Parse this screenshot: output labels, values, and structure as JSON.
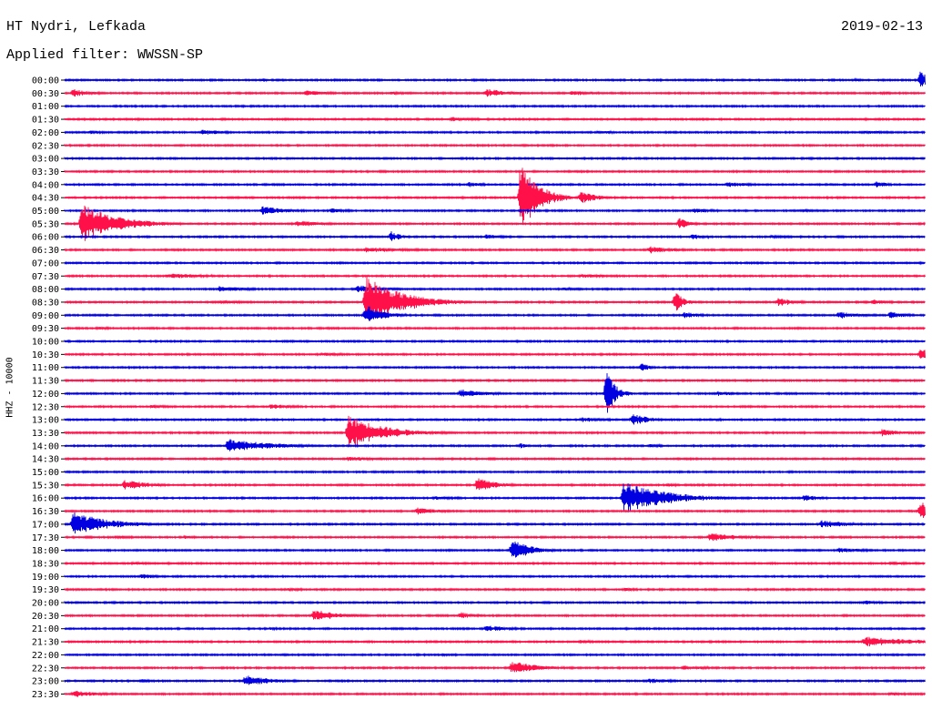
{
  "header": {
    "station": "HT Nydri, Lefkada",
    "date": "2019-02-13",
    "filter": "Applied filter: WWSSN-SP"
  },
  "chart_data": {
    "type": "line",
    "title": "HT Nydri, Lefkada",
    "subtitle": "Applied filter: WWSSN-SP",
    "ylabel": "HHZ - 10000",
    "trace_colors": [
      "#0000e0",
      "#ff1048"
    ],
    "row_labels": [
      "00:00",
      "00:30",
      "01:00",
      "01:30",
      "02:00",
      "02:30",
      "03:00",
      "03:30",
      "04:00",
      "04:30",
      "05:00",
      "05:30",
      "06:00",
      "06:30",
      "07:00",
      "07:30",
      "08:00",
      "08:30",
      "09:00",
      "09:30",
      "10:00",
      "10:30",
      "11:00",
      "11:30",
      "12:00",
      "12:30",
      "13:00",
      "13:30",
      "14:00",
      "14:30",
      "15:00",
      "15:30",
      "16:00",
      "16:30",
      "17:00",
      "17:30",
      "18:00",
      "18:30",
      "19:00",
      "19:30",
      "20:00",
      "20:30",
      "21:00",
      "21:30",
      "22:00",
      "22:30",
      "23:00",
      "23:30"
    ],
    "events": [
      {
        "row": "00:00",
        "t": 0.995,
        "amp": 12,
        "dur": 0.01
      },
      {
        "row": "00:00",
        "t": 0.23,
        "amp": 2,
        "dur": 0.01
      },
      {
        "row": "00:00",
        "t": 0.92,
        "amp": 2,
        "dur": 0.01
      },
      {
        "row": "00:30",
        "t": 0.01,
        "amp": 5,
        "dur": 0.02
      },
      {
        "row": "00:30",
        "t": 0.28,
        "amp": 3,
        "dur": 0.03
      },
      {
        "row": "00:30",
        "t": 0.38,
        "amp": 2,
        "dur": 0.02
      },
      {
        "row": "00:30",
        "t": 0.49,
        "amp": 5,
        "dur": 0.03
      },
      {
        "row": "00:30",
        "t": 0.59,
        "amp": 3,
        "dur": 0.03
      },
      {
        "row": "00:30",
        "t": 0.95,
        "amp": 2,
        "dur": 0.02
      },
      {
        "row": "01:30",
        "t": 0.45,
        "amp": 3,
        "dur": 0.03
      },
      {
        "row": "02:00",
        "t": 0.03,
        "amp": 2,
        "dur": 0.02
      },
      {
        "row": "02:00",
        "t": 0.16,
        "amp": 3,
        "dur": 0.03
      },
      {
        "row": "02:00",
        "t": 0.62,
        "amp": 2,
        "dur": 0.03
      },
      {
        "row": "02:00",
        "t": 0.93,
        "amp": 2,
        "dur": 0.04
      },
      {
        "row": "04:00",
        "t": 0.47,
        "amp": 3,
        "dur": 0.02
      },
      {
        "row": "04:00",
        "t": 0.77,
        "amp": 3,
        "dur": 0.03
      },
      {
        "row": "04:00",
        "t": 0.945,
        "amp": 5,
        "dur": 0.01
      },
      {
        "row": "04:30",
        "t": 0.53,
        "amp": 42,
        "dur": 0.02
      },
      {
        "row": "04:30",
        "t": 0.6,
        "amp": 7,
        "dur": 0.02
      },
      {
        "row": "05:00",
        "t": 0.23,
        "amp": 5,
        "dur": 0.03
      },
      {
        "row": "05:00",
        "t": 0.31,
        "amp": 3,
        "dur": 0.02
      },
      {
        "row": "05:00",
        "t": 0.73,
        "amp": 3,
        "dur": 0.03
      },
      {
        "row": "05:00",
        "t": 0.86,
        "amp": 2,
        "dur": 0.02
      },
      {
        "row": "05:30",
        "t": 0.02,
        "amp": 22,
        "dur": 0.04
      },
      {
        "row": "05:30",
        "t": 0.27,
        "amp": 4,
        "dur": 0.03
      },
      {
        "row": "05:30",
        "t": 0.715,
        "amp": 8,
        "dur": 0.01
      },
      {
        "row": "06:00",
        "t": 0.38,
        "amp": 7,
        "dur": 0.01
      },
      {
        "row": "06:00",
        "t": 0.49,
        "amp": 3,
        "dur": 0.02
      },
      {
        "row": "06:00",
        "t": 0.73,
        "amp": 3,
        "dur": 0.02
      },
      {
        "row": "06:00",
        "t": 0.82,
        "amp": 2,
        "dur": 0.03
      },
      {
        "row": "06:30",
        "t": 0.35,
        "amp": 3,
        "dur": 0.06
      },
      {
        "row": "06:30",
        "t": 0.68,
        "amp": 4,
        "dur": 0.03
      },
      {
        "row": "07:30",
        "t": 0.12,
        "amp": 3,
        "dur": 0.05
      },
      {
        "row": "07:30",
        "t": 0.6,
        "amp": 2,
        "dur": 0.06
      },
      {
        "row": "08:00",
        "t": 0.18,
        "amp": 4,
        "dur": 0.03
      },
      {
        "row": "08:00",
        "t": 0.34,
        "amp": 5,
        "dur": 0.03
      },
      {
        "row": "08:00",
        "t": 0.58,
        "amp": 2,
        "dur": 0.02
      },
      {
        "row": "08:30",
        "t": 0.35,
        "amp": 30,
        "dur": 0.04
      },
      {
        "row": "08:30",
        "t": 0.71,
        "amp": 12,
        "dur": 0.01
      },
      {
        "row": "08:30",
        "t": 0.83,
        "amp": 5,
        "dur": 0.02
      },
      {
        "row": "08:30",
        "t": 0.94,
        "amp": 3,
        "dur": 0.02
      },
      {
        "row": "08:30",
        "t": 0.18,
        "amp": 2,
        "dur": 0.05
      },
      {
        "row": "09:00",
        "t": 0.35,
        "amp": 12,
        "dur": 0.02
      },
      {
        "row": "09:00",
        "t": 0.72,
        "amp": 4,
        "dur": 0.02
      },
      {
        "row": "09:00",
        "t": 0.9,
        "amp": 4,
        "dur": 0.03
      },
      {
        "row": "09:00",
        "t": 0.96,
        "amp": 4,
        "dur": 0.02
      },
      {
        "row": "09:30",
        "t": 0.04,
        "amp": 2,
        "dur": 0.02
      },
      {
        "row": "10:30",
        "t": 0.3,
        "amp": 2,
        "dur": 0.04
      },
      {
        "row": "10:30",
        "t": 0.995,
        "amp": 7,
        "dur": 0.02
      },
      {
        "row": "11:00",
        "t": 0.67,
        "amp": 6,
        "dur": 0.01
      },
      {
        "row": "12:00",
        "t": 0.63,
        "amp": 28,
        "dur": 0.01
      },
      {
        "row": "12:00",
        "t": 0.46,
        "amp": 5,
        "dur": 0.03
      },
      {
        "row": "12:00",
        "t": 0.76,
        "amp": 3,
        "dur": 0.02
      },
      {
        "row": "12:30",
        "t": 0.1,
        "amp": 2,
        "dur": 0.04
      },
      {
        "row": "12:30",
        "t": 0.24,
        "amp": 3,
        "dur": 0.03
      },
      {
        "row": "13:00",
        "t": 0.66,
        "amp": 7,
        "dur": 0.02
      },
      {
        "row": "13:00",
        "t": 0.6,
        "amp": 3,
        "dur": 0.04
      },
      {
        "row": "13:00",
        "t": 0.75,
        "amp": 2,
        "dur": 0.02
      },
      {
        "row": "13:30",
        "t": 0.33,
        "amp": 20,
        "dur": 0.04
      },
      {
        "row": "13:30",
        "t": 0.95,
        "amp": 4,
        "dur": 0.03
      },
      {
        "row": "14:00",
        "t": 0.19,
        "amp": 8,
        "dur": 0.05
      },
      {
        "row": "14:00",
        "t": 0.53,
        "amp": 3,
        "dur": 0.01
      },
      {
        "row": "14:00",
        "t": 0.68,
        "amp": 2,
        "dur": 0.02
      },
      {
        "row": "14:30",
        "t": 0.33,
        "amp": 3,
        "dur": 0.03
      },
      {
        "row": "15:00",
        "t": 0.41,
        "amp": 2,
        "dur": 0.02
      },
      {
        "row": "15:30",
        "t": 0.07,
        "amp": 6,
        "dur": 0.03
      },
      {
        "row": "15:30",
        "t": 0.48,
        "amp": 9,
        "dur": 0.02
      },
      {
        "row": "15:30",
        "t": 0.7,
        "amp": 2,
        "dur": 0.02
      },
      {
        "row": "16:00",
        "t": 0.65,
        "amp": 18,
        "dur": 0.05
      },
      {
        "row": "16:00",
        "t": 0.86,
        "amp": 4,
        "dur": 0.02
      },
      {
        "row": "16:00",
        "t": 0.43,
        "amp": 2,
        "dur": 0.04
      },
      {
        "row": "16:30",
        "t": 0.995,
        "amp": 11,
        "dur": 0.02
      },
      {
        "row": "16:30",
        "t": 0.41,
        "amp": 4,
        "dur": 0.03
      },
      {
        "row": "17:00",
        "t": 0.01,
        "amp": 14,
        "dur": 0.04
      },
      {
        "row": "17:00",
        "t": 0.88,
        "amp": 5,
        "dur": 0.03
      },
      {
        "row": "17:30",
        "t": 0.06,
        "amp": 2,
        "dur": 0.03
      },
      {
        "row": "17:30",
        "t": 0.75,
        "amp": 5,
        "dur": 0.04
      },
      {
        "row": "17:30",
        "t": 0.14,
        "amp": 2,
        "dur": 0.02
      },
      {
        "row": "18:00",
        "t": 0.52,
        "amp": 14,
        "dur": 0.02
      },
      {
        "row": "18:00",
        "t": 0.9,
        "amp": 3,
        "dur": 0.03
      },
      {
        "row": "18:30",
        "t": 0.08,
        "amp": 2,
        "dur": 0.03
      },
      {
        "row": "18:30",
        "t": 0.96,
        "amp": 2,
        "dur": 0.03
      },
      {
        "row": "19:00",
        "t": 0.09,
        "amp": 3,
        "dur": 0.02
      },
      {
        "row": "19:30",
        "t": 0.26,
        "amp": 2,
        "dur": 0.03
      },
      {
        "row": "19:30",
        "t": 0.65,
        "amp": 2,
        "dur": 0.02
      },
      {
        "row": "20:00",
        "t": 0.93,
        "amp": 3,
        "dur": 0.02
      },
      {
        "row": "20:30",
        "t": 0.29,
        "amp": 7,
        "dur": 0.03
      },
      {
        "row": "20:30",
        "t": 0.46,
        "amp": 4,
        "dur": 0.02
      },
      {
        "row": "21:00",
        "t": 0.49,
        "amp": 4,
        "dur": 0.03
      },
      {
        "row": "21:00",
        "t": 0.24,
        "amp": 2,
        "dur": 0.01
      },
      {
        "row": "21:30",
        "t": 0.93,
        "amp": 6,
        "dur": 0.06
      },
      {
        "row": "21:30",
        "t": 0.6,
        "amp": 2,
        "dur": 0.02
      },
      {
        "row": "22:00",
        "t": 0.44,
        "amp": 2,
        "dur": 0.01
      },
      {
        "row": "22:30",
        "t": 0.52,
        "amp": 8,
        "dur": 0.03
      },
      {
        "row": "22:30",
        "t": 0.72,
        "amp": 3,
        "dur": 0.03
      },
      {
        "row": "23:00",
        "t": 0.21,
        "amp": 7,
        "dur": 0.03
      },
      {
        "row": "23:00",
        "t": 0.68,
        "amp": 3,
        "dur": 0.03
      },
      {
        "row": "23:00",
        "t": 0.09,
        "amp": 2,
        "dur": 0.02
      },
      {
        "row": "23:30",
        "t": 0.01,
        "amp": 4,
        "dur": 0.03
      },
      {
        "row": "23:30",
        "t": 0.96,
        "amp": 2,
        "dur": 0.03
      }
    ]
  }
}
